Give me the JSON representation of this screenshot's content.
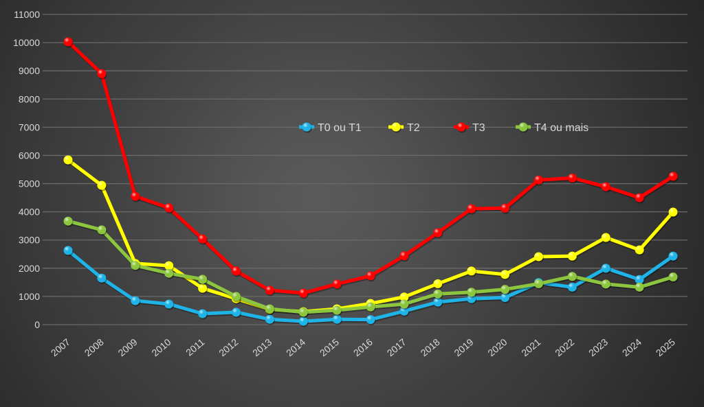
{
  "chart_data": {
    "type": "line",
    "title": "",
    "xlabel": "",
    "ylabel": "",
    "ylim": [
      0,
      11000
    ],
    "yticks": [
      "0",
      "1000",
      "2000",
      "3000",
      "4000",
      "5000",
      "6000",
      "7000",
      "8000",
      "9000",
      "10000",
      "11000"
    ],
    "grid": true,
    "legend_position": "top-center (inside plot)",
    "categories": [
      "2007",
      "2008",
      "2009",
      "2010",
      "2011",
      "2012",
      "2013",
      "2014",
      "2015",
      "2016",
      "2017",
      "2018",
      "2019",
      "2020",
      "2021",
      "2022",
      "2023",
      "2024",
      "2025"
    ],
    "series": [
      {
        "name": "T0 ou T1",
        "color": "#1fb4e8",
        "values": [
          2630,
          1650,
          850,
          730,
          390,
          440,
          190,
          120,
          190,
          180,
          480,
          800,
          920,
          960,
          1490,
          1330,
          2000,
          1600,
          2430
        ]
      },
      {
        "name": "T2",
        "color": "#ffff00",
        "values": [
          5840,
          4940,
          2170,
          2090,
          1290,
          920,
          540,
          460,
          560,
          750,
          980,
          1450,
          1900,
          1780,
          2410,
          2430,
          3090,
          2650,
          3990
        ]
      },
      {
        "name": "T3",
        "color": "#ff0000",
        "values": [
          10030,
          8900,
          4550,
          4140,
          3040,
          1900,
          1220,
          1120,
          1440,
          1730,
          2440,
          3260,
          4110,
          4130,
          5130,
          5200,
          4890,
          4500,
          5260
        ]
      },
      {
        "name": "T4 ou mais",
        "color": "#8cc63f",
        "values": [
          3670,
          3360,
          2100,
          1820,
          1610,
          1000,
          560,
          440,
          510,
          630,
          730,
          1090,
          1150,
          1250,
          1450,
          1710,
          1440,
          1330,
          1690
        ]
      }
    ]
  }
}
